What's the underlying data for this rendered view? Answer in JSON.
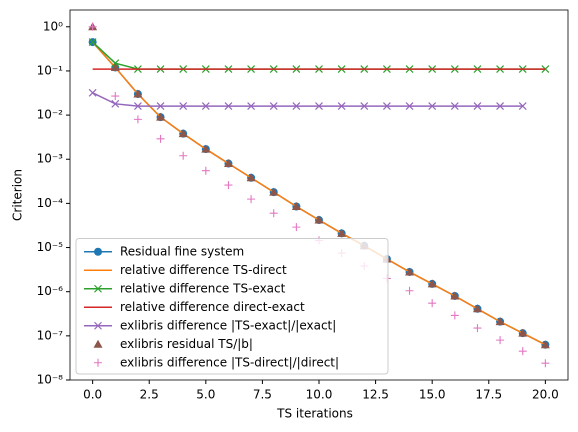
{
  "chart_data": {
    "type": "line",
    "x_label": "TS iterations",
    "y_label": "Criterion",
    "log_y": true,
    "legend": "lower left",
    "xlim": [
      -1,
      21
    ],
    "ylim": [
      1e-08,
      2.4
    ],
    "xticks": [
      {
        "value": 0,
        "label": "0.0"
      },
      2.5,
      {
        "value": 5,
        "label": "5.0"
      },
      7.5,
      {
        "value": 10,
        "label": "10.0"
      },
      12.5,
      {
        "value": 15,
        "label": "15.0"
      },
      17.5,
      {
        "value": 20,
        "label": "20.0"
      }
    ],
    "yticks": [
      {
        "value": 1e-08,
        "label": "10⁻⁸"
      },
      {
        "value": 1e-07,
        "label": "10⁻⁷"
      },
      {
        "value": 1e-06,
        "label": "10⁻⁶"
      },
      {
        "value": 1e-05,
        "label": "10⁻⁵"
      },
      {
        "value": 0.0001,
        "label": "10⁻⁴"
      },
      {
        "value": 0.001,
        "label": "10⁻³"
      },
      {
        "value": 0.01,
        "label": "10⁻²"
      },
      {
        "value": 0.1,
        "label": "10⁻¹"
      },
      {
        "value": 1,
        "label": "10⁰"
      }
    ],
    "series": [
      {
        "name": "Residual fine system",
        "color": "#1f77b4",
        "line": true,
        "marker": "o",
        "x": [
          0,
          1,
          2,
          3,
          4,
          5,
          6,
          7,
          8,
          9,
          10,
          11,
          12,
          13,
          14,
          15,
          16,
          17,
          18,
          19,
          20
        ],
        "values": [
          0.45,
          0.12,
          0.03,
          0.009,
          0.0038,
          0.0017,
          0.0008,
          0.00038,
          0.00018,
          8.5e-05,
          4.2e-05,
          2.1e-05,
          1.1e-05,
          5.5e-06,
          2.8e-06,
          1.5e-06,
          8e-07,
          4.1e-07,
          2.1e-07,
          1.15e-07,
          6.3e-08
        ]
      },
      {
        "name": "relative difference TS-direct",
        "color": "#ff7f0e",
        "line": true,
        "marker": "none",
        "x": [
          0,
          1,
          2,
          3,
          4,
          5,
          6,
          7,
          8,
          9,
          10,
          11,
          12,
          13,
          14,
          15,
          16,
          17,
          18,
          19,
          20
        ],
        "values": [
          0.45,
          0.12,
          0.03,
          0.009,
          0.0038,
          0.0017,
          0.0008,
          0.00038,
          0.00018,
          8.5e-05,
          4.2e-05,
          2.1e-05,
          1.1e-05,
          5.5e-06,
          2.8e-06,
          1.5e-06,
          8e-07,
          4.1e-07,
          2.1e-07,
          1.15e-07,
          6.3e-08
        ]
      },
      {
        "name": "relative difference TS-exact",
        "color": "#2ca02c",
        "line": true,
        "marker": "x",
        "x": [
          0,
          1,
          2,
          3,
          4,
          5,
          6,
          7,
          8,
          9,
          10,
          11,
          12,
          13,
          14,
          15,
          16,
          17,
          18,
          19,
          20
        ],
        "values": [
          0.45,
          0.15,
          0.11,
          0.11,
          0.11,
          0.11,
          0.11,
          0.11,
          0.11,
          0.11,
          0.11,
          0.11,
          0.11,
          0.11,
          0.11,
          0.11,
          0.11,
          0.11,
          0.11,
          0.11,
          0.11
        ]
      },
      {
        "name": "relative difference direct-exact",
        "color": "#d62728",
        "line": true,
        "marker": "none",
        "x": [
          0,
          1,
          2,
          3,
          4,
          5,
          6,
          7,
          8,
          9,
          10,
          11,
          12,
          13,
          14,
          15,
          16,
          17,
          18,
          19,
          20
        ],
        "values": [
          0.11,
          0.11,
          0.11,
          0.11,
          0.11,
          0.11,
          0.11,
          0.11,
          0.11,
          0.11,
          0.11,
          0.11,
          0.11,
          0.11,
          0.11,
          0.11,
          0.11,
          0.11,
          0.11,
          0.11,
          0.11
        ]
      },
      {
        "name": "exlibris difference |TS-exact|/|exact|",
        "color": "#9467bd",
        "line": true,
        "marker": "x",
        "x": [
          0,
          1,
          2,
          3,
          4,
          5,
          6,
          7,
          8,
          9,
          10,
          11,
          12,
          13,
          14,
          15,
          16,
          17,
          18,
          19
        ],
        "values": [
          0.032,
          0.018,
          0.016,
          0.016,
          0.016,
          0.016,
          0.016,
          0.016,
          0.016,
          0.016,
          0.016,
          0.016,
          0.016,
          0.016,
          0.016,
          0.016,
          0.016,
          0.016,
          0.016,
          0.016
        ]
      },
      {
        "name": "exlibris residual TS/|b|",
        "color": "#8c564b",
        "line": false,
        "marker": "^",
        "x": [
          0,
          1,
          2,
          3,
          4,
          5,
          6,
          7,
          8,
          9,
          10,
          11,
          12,
          13,
          14,
          15,
          16,
          17,
          18,
          19,
          20
        ],
        "values": [
          1.0,
          0.12,
          0.03,
          0.009,
          0.0038,
          0.0017,
          0.0008,
          0.00038,
          0.00018,
          8.5e-05,
          4.2e-05,
          2.1e-05,
          1.1e-05,
          5.5e-06,
          2.8e-06,
          1.5e-06,
          8e-07,
          4.1e-07,
          2.1e-07,
          1.15e-07,
          6.3e-08
        ]
      },
      {
        "name": "exlibris difference |TS-direct|/|direct|",
        "color": "#e377c2",
        "line": false,
        "marker": "+",
        "x": [
          0,
          1,
          2,
          3,
          4,
          5,
          6,
          7,
          8,
          9,
          10,
          11,
          12,
          13,
          14,
          15,
          16,
          17,
          18,
          19,
          20
        ],
        "values": [
          1.0,
          0.027,
          0.008,
          0.0029,
          0.0012,
          0.00055,
          0.00026,
          0.000125,
          6e-05,
          2.9e-05,
          1.45e-05,
          7.5e-06,
          3.8e-06,
          2e-06,
          1.05e-06,
          5.5e-07,
          2.9e-07,
          1.5e-07,
          8e-08,
          4.5e-08,
          2.4e-08
        ]
      }
    ]
  }
}
